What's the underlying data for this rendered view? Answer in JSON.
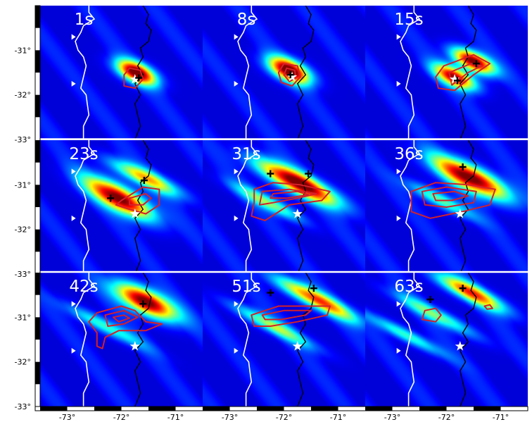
{
  "panels": [
    {
      "time": "1s",
      "row": 0,
      "col": 0,
      "star": [
        -71.75,
        -31.65
      ],
      "blobs": [
        {
          "lon": -71.72,
          "lat": -31.5,
          "s1": 0.28,
          "s2": 0.14,
          "ang": -58,
          "amp": 1.0
        }
      ],
      "plus": [
        [
          -71.68,
          -31.62
        ]
      ],
      "contours": [
        [
          [
            -71.85,
            -31.4
          ],
          [
            -71.65,
            -31.45
          ],
          [
            -71.6,
            -31.65
          ],
          [
            -71.75,
            -31.85
          ],
          [
            -71.95,
            -31.8
          ],
          [
            -71.95,
            -31.55
          ]
        ]
      ]
    },
    {
      "time": "8s",
      "row": 0,
      "col": 1,
      "star": [
        -71.85,
        -31.6
      ],
      "blobs": [
        {
          "lon": -71.9,
          "lat": -31.45,
          "s1": 0.3,
          "s2": 0.15,
          "ang": -58,
          "amp": 1.0
        }
      ],
      "plus": [
        [
          -71.88,
          -31.55
        ]
      ],
      "contours": [
        [
          [
            -72.0,
            -31.3
          ],
          [
            -71.75,
            -31.35
          ],
          [
            -71.7,
            -31.6
          ],
          [
            -71.85,
            -31.8
          ],
          [
            -72.05,
            -31.72
          ],
          [
            -72.1,
            -31.5
          ]
        ],
        [
          [
            -71.95,
            -31.4
          ],
          [
            -71.8,
            -31.45
          ],
          [
            -71.78,
            -31.62
          ],
          [
            -71.9,
            -31.7
          ],
          [
            -72.0,
            -31.55
          ]
        ]
      ]
    },
    {
      "time": "15s",
      "row": 0,
      "col": 2,
      "star": [
        -71.85,
        -31.65
      ],
      "blobs": [
        {
          "lon": -71.5,
          "lat": -31.25,
          "s1": 0.3,
          "s2": 0.13,
          "ang": -58,
          "amp": 1.0
        },
        {
          "lon": -71.85,
          "lat": -31.6,
          "s1": 0.3,
          "s2": 0.13,
          "ang": -58,
          "amp": 0.9
        }
      ],
      "plus": [
        [
          -71.45,
          -31.3
        ],
        [
          -71.8,
          -31.68
        ]
      ],
      "contours": [
        [
          [
            -72.05,
            -31.35
          ],
          [
            -71.5,
            -31.1
          ],
          [
            -71.2,
            -31.3
          ],
          [
            -71.5,
            -31.55
          ],
          [
            -71.85,
            -31.9
          ],
          [
            -72.15,
            -31.85
          ],
          [
            -72.2,
            -31.6
          ]
        ],
        [
          [
            -71.95,
            -31.5
          ],
          [
            -71.55,
            -31.3
          ],
          [
            -71.35,
            -31.35
          ],
          [
            -71.6,
            -31.5
          ],
          [
            -71.9,
            -31.78
          ]
        ]
      ]
    },
    {
      "time": "23s",
      "row": 1,
      "col": 0,
      "star": [
        -71.75,
        -31.65
      ],
      "blobs": [
        {
          "lon": -72.05,
          "lat": -31.3,
          "s1": 0.5,
          "s2": 0.17,
          "ang": -55,
          "amp": 1.0
        },
        {
          "lon": -71.55,
          "lat": -30.85,
          "s1": 0.5,
          "s2": 0.12,
          "ang": -60,
          "amp": 0.6
        }
      ],
      "plus": [
        [
          -72.2,
          -31.3
        ],
        [
          -71.58,
          -30.9
        ]
      ],
      "contours": [
        [
          [
            -72.0,
            -31.35
          ],
          [
            -71.6,
            -31.05
          ],
          [
            -71.3,
            -31.1
          ],
          [
            -71.3,
            -31.45
          ],
          [
            -71.55,
            -31.65
          ],
          [
            -71.85,
            -31.55
          ],
          [
            -72.1,
            -31.45
          ]
        ],
        [
          [
            -71.85,
            -31.3
          ],
          [
            -71.55,
            -31.2
          ],
          [
            -71.45,
            -31.3
          ],
          [
            -71.6,
            -31.45
          ],
          [
            -71.85,
            -31.45
          ]
        ]
      ]
    },
    {
      "time": "31s",
      "row": 1,
      "col": 1,
      "star": [
        -71.75,
        -31.65
      ],
      "blobs": [
        {
          "lon": -71.75,
          "lat": -30.95,
          "s1": 0.6,
          "s2": 0.15,
          "ang": -58,
          "amp": 1.0
        },
        {
          "lon": -72.3,
          "lat": -31.4,
          "s1": 0.5,
          "s2": 0.1,
          "ang": -58,
          "amp": 0.45
        }
      ],
      "plus": [
        [
          -72.25,
          -30.75
        ],
        [
          -71.55,
          -30.75
        ]
      ],
      "contours": [
        [
          [
            -72.55,
            -31.1
          ],
          [
            -72.2,
            -30.95
          ],
          [
            -71.7,
            -31.0
          ],
          [
            -71.15,
            -31.15
          ],
          [
            -71.3,
            -31.35
          ],
          [
            -71.9,
            -31.45
          ],
          [
            -72.35,
            -31.8
          ],
          [
            -72.6,
            -31.7
          ],
          [
            -72.55,
            -31.4
          ]
        ],
        [
          [
            -72.4,
            -31.15
          ],
          [
            -71.9,
            -31.1
          ],
          [
            -71.4,
            -31.2
          ],
          [
            -71.75,
            -31.3
          ],
          [
            -72.2,
            -31.4
          ],
          [
            -72.45,
            -31.45
          ]
        ],
        [
          [
            -72.2,
            -31.2
          ],
          [
            -71.75,
            -31.15
          ],
          [
            -71.55,
            -31.22
          ],
          [
            -71.95,
            -31.3
          ],
          [
            -72.25,
            -31.3
          ]
        ]
      ]
    },
    {
      "time": "36s",
      "row": 1,
      "col": 2,
      "star": [
        -71.75,
        -31.65
      ],
      "blobs": [
        {
          "lon": -71.55,
          "lat": -30.85,
          "s1": 0.55,
          "s2": 0.17,
          "ang": -58,
          "amp": 1.0
        },
        {
          "lon": -72.1,
          "lat": -31.35,
          "s1": 0.5,
          "s2": 0.1,
          "ang": -58,
          "amp": 0.4
        }
      ],
      "plus": [
        [
          -71.7,
          -30.6
        ]
      ],
      "contours": [
        [
          [
            -72.65,
            -31.15
          ],
          [
            -72.2,
            -30.95
          ],
          [
            -71.6,
            -31.0
          ],
          [
            -71.1,
            -31.1
          ],
          [
            -71.2,
            -31.45
          ],
          [
            -71.7,
            -31.6
          ],
          [
            -72.3,
            -31.75
          ],
          [
            -72.65,
            -31.6
          ]
        ],
        [
          [
            -72.45,
            -31.15
          ],
          [
            -72.0,
            -31.05
          ],
          [
            -71.45,
            -31.15
          ],
          [
            -71.5,
            -31.4
          ],
          [
            -72.0,
            -31.5
          ],
          [
            -72.4,
            -31.45
          ]
        ],
        [
          [
            -72.25,
            -31.2
          ],
          [
            -71.85,
            -31.15
          ],
          [
            -71.6,
            -31.25
          ],
          [
            -71.9,
            -31.35
          ],
          [
            -72.2,
            -31.35
          ]
        ]
      ]
    },
    {
      "time": "42s",
      "row": 2,
      "col": 0,
      "star": [
        -71.75,
        -31.65
      ],
      "blobs": [
        {
          "lon": -71.55,
          "lat": -30.65,
          "s1": 0.45,
          "s2": 0.17,
          "ang": -58,
          "amp": 1.0
        },
        {
          "lon": -72.3,
          "lat": -31.2,
          "s1": 0.6,
          "s2": 0.1,
          "ang": -58,
          "amp": 0.35
        }
      ],
      "plus": [
        [
          -71.6,
          -30.7
        ]
      ],
      "contours": [
        [
          [
            -72.45,
            -30.9
          ],
          [
            -72.0,
            -30.75
          ],
          [
            -71.75,
            -30.85
          ],
          [
            -71.55,
            -31.1
          ],
          [
            -71.25,
            -31.15
          ],
          [
            -71.55,
            -31.3
          ],
          [
            -72.05,
            -31.3
          ],
          [
            -72.3,
            -31.45
          ],
          [
            -72.35,
            -31.7
          ],
          [
            -72.45,
            -31.65
          ],
          [
            -72.45,
            -31.35
          ],
          [
            -72.6,
            -31.1
          ]
        ],
        [
          [
            -72.3,
            -30.95
          ],
          [
            -71.95,
            -30.85
          ],
          [
            -71.7,
            -31.0
          ],
          [
            -71.95,
            -31.15
          ],
          [
            -72.25,
            -31.2
          ]
        ],
        [
          [
            -72.15,
            -31.0
          ],
          [
            -71.95,
            -30.95
          ],
          [
            -71.85,
            -31.02
          ],
          [
            -72.05,
            -31.1
          ]
        ]
      ]
    },
    {
      "time": "51s",
      "row": 2,
      "col": 1,
      "star": [
        -71.75,
        -31.65
      ],
      "blobs": [
        {
          "lon": -71.4,
          "lat": -30.6,
          "s1": 0.6,
          "s2": 0.12,
          "ang": -58,
          "amp": 0.75
        },
        {
          "lon": -72.2,
          "lat": -31.2,
          "s1": 0.6,
          "s2": 0.1,
          "ang": -58,
          "amp": 0.45
        }
      ],
      "plus": [
        [
          -72.25,
          -30.45
        ],
        [
          -71.45,
          -30.35
        ]
      ],
      "contours": [
        [
          [
            -72.6,
            -30.95
          ],
          [
            -72.1,
            -30.75
          ],
          [
            -71.6,
            -30.75
          ],
          [
            -71.15,
            -30.75
          ],
          [
            -71.2,
            -30.95
          ],
          [
            -71.75,
            -31.1
          ],
          [
            -72.25,
            -31.2
          ],
          [
            -72.55,
            -31.2
          ]
        ],
        [
          [
            -72.4,
            -30.95
          ],
          [
            -72.0,
            -30.85
          ],
          [
            -71.5,
            -30.85
          ],
          [
            -71.6,
            -30.95
          ],
          [
            -72.05,
            -31.05
          ],
          [
            -72.35,
            -31.05
          ]
        ]
      ]
    },
    {
      "time": "63s",
      "row": 2,
      "col": 2,
      "star": [
        -71.75,
        -31.65
      ],
      "blobs": [
        {
          "lon": -71.55,
          "lat": -30.45,
          "s1": 0.5,
          "s2": 0.12,
          "ang": -58,
          "amp": 0.75
        },
        {
          "lon": -72.2,
          "lat": -30.95,
          "s1": 0.6,
          "s2": 0.1,
          "ang": -58,
          "amp": 0.4
        },
        {
          "lon": -72.75,
          "lat": -31.4,
          "s1": 0.6,
          "s2": 0.09,
          "ang": -58,
          "amp": 0.35
        }
      ],
      "plus": [
        [
          -72.3,
          -30.6
        ],
        [
          -71.7,
          -30.35
        ]
      ],
      "contours": [
        [
          [
            -72.4,
            -30.85
          ],
          [
            -72.2,
            -30.8
          ],
          [
            -72.1,
            -30.95
          ],
          [
            -72.2,
            -31.1
          ],
          [
            -72.45,
            -31.05
          ]
        ],
        [
          [
            -71.3,
            -30.75
          ],
          [
            -71.2,
            -30.72
          ],
          [
            -71.15,
            -30.8
          ],
          [
            -71.25,
            -30.82
          ]
        ]
      ]
    }
  ],
  "y_ticks": [
    "-31°",
    "-32°",
    "-33°"
  ],
  "x_ticks": [
    "-73°",
    "-72°",
    "-71°"
  ],
  "colors": {
    "background": "#000080",
    "contour": "#d4202a",
    "coast": "#ffffff",
    "border": "#000000",
    "star": "#ffffff",
    "plus": "#000000"
  },
  "icons": {
    "epicenter": "star-icon",
    "sub_event": "plus-icon",
    "trench": "triangle-icon"
  }
}
